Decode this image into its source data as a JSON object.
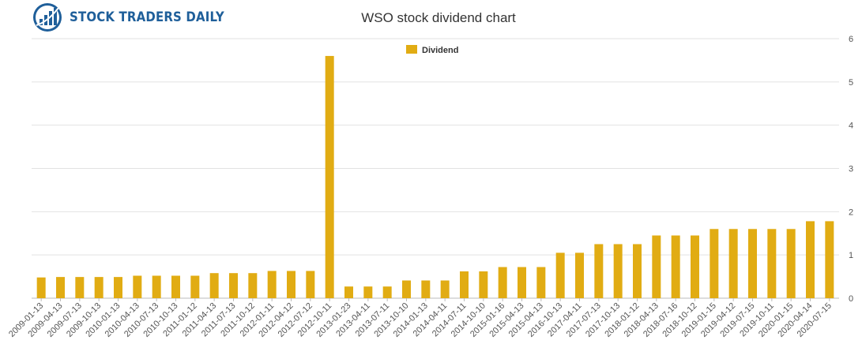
{
  "brand": {
    "name": "STOCK TRADERS DAILY",
    "icon": "bar-chart-globe-icon",
    "color": "#1f5f9a"
  },
  "chart_data": {
    "type": "bar",
    "title": "WSO stock dividend chart",
    "xlabel": "",
    "ylabel": "",
    "legend": {
      "position": "top-center",
      "entries": [
        "Dividend"
      ]
    },
    "grid": true,
    "y_axis_side": "right",
    "ylim": [
      0,
      6
    ],
    "yticks": [
      0,
      1,
      2,
      3,
      4,
      5,
      6
    ],
    "bar_color": "#e1ac13",
    "categories": [
      "2009-01-13",
      "2009-04-13",
      "2009-07-13",
      "2009-10-13",
      "2010-01-13",
      "2010-04-13",
      "2010-07-13",
      "2010-10-13",
      "2011-01-12",
      "2011-04-13",
      "2011-07-13",
      "2011-10-12",
      "2012-01-11",
      "2012-04-12",
      "2012-07-12",
      "2012-10-11",
      "2013-01-23",
      "2013-04-11",
      "2013-07-11",
      "2013-10-10",
      "2014-01-13",
      "2014-04-11",
      "2014-07-11",
      "2014-10-10",
      "2015-01-16",
      "2015-04-13",
      "2015-04-13",
      "2016-10-13",
      "2017-04-11",
      "2017-07-13",
      "2017-10-13",
      "2018-01-12",
      "2018-04-13",
      "2018-07-16",
      "2018-10-12",
      "2019-01-15",
      "2019-04-12",
      "2019-07-15",
      "2019-10-11",
      "2020-01-15",
      "2020-04-14",
      "2020-07-15"
    ],
    "series": [
      {
        "name": "Dividend",
        "values": [
          0.48,
          0.49,
          0.49,
          0.49,
          0.49,
          0.52,
          0.52,
          0.52,
          0.52,
          0.58,
          0.58,
          0.58,
          0.63,
          0.63,
          0.63,
          5.6,
          0.27,
          0.27,
          0.27,
          0.41,
          0.41,
          0.41,
          0.62,
          0.62,
          0.72,
          0.72,
          0.72,
          1.05,
          1.05,
          1.25,
          1.25,
          1.25,
          1.45,
          1.45,
          1.45,
          1.6,
          1.6,
          1.6,
          1.6,
          1.6,
          1.78,
          1.78
        ]
      }
    ]
  }
}
